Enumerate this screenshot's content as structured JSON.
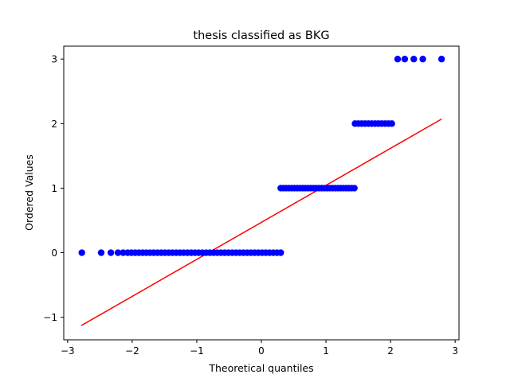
{
  "chart_data": {
    "type": "scatter",
    "title": "thesis classified as BKG",
    "xlabel": "Theoretical quantiles",
    "ylabel": "Ordered Values",
    "xlim": [
      -3.06,
      3.06
    ],
    "ylim": [
      -1.35,
      3.2
    ],
    "x_ticks": [
      {
        "value": -3,
        "label": "−3"
      },
      {
        "value": -2,
        "label": "−2"
      },
      {
        "value": -1,
        "label": "−1"
      },
      {
        "value": 0,
        "label": "0"
      },
      {
        "value": 1,
        "label": "1"
      },
      {
        "value": 2,
        "label": "2"
      },
      {
        "value": 3,
        "label": "3"
      }
    ],
    "y_ticks": [
      {
        "value": -1,
        "label": "−1"
      },
      {
        "value": 0,
        "label": "0"
      },
      {
        "value": 1,
        "label": "1"
      },
      {
        "value": 2,
        "label": "2"
      },
      {
        "value": 3,
        "label": "3"
      }
    ],
    "grid": false,
    "legend": "none",
    "series": [
      {
        "marker_color": "#0000ff",
        "points": [
          {
            "value": 0,
            "x_range": [
              -2.78,
              0.3
            ],
            "n": 42,
            "edge_points": [
              -2.78,
              -2.48,
              -2.33,
              -2.22,
              -2.14,
              -2.07
            ]
          },
          {
            "value": 1,
            "x_range": [
              0.3,
              1.44
            ],
            "n": 28
          },
          {
            "value": 2,
            "x_range": [
              1.45,
              2.02
            ],
            "n": 12
          },
          {
            "value": 3,
            "x_values": [
              2.11,
              2.22,
              2.36,
              2.5,
              2.79
            ]
          }
        ]
      },
      {
        "type": "line",
        "color": "#ff0000",
        "x": [
          -2.79,
          2.79
        ],
        "y": [
          -1.13,
          2.07
        ]
      }
    ]
  }
}
